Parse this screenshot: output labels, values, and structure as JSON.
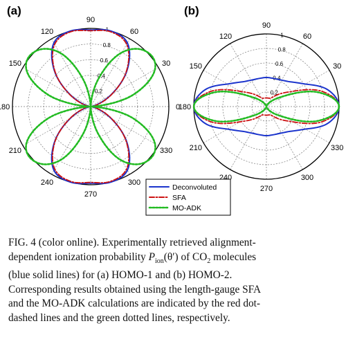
{
  "chart_data": [
    {
      "type": "polar-line",
      "panel_label": "(a)",
      "theta_ticks_deg": [
        "0",
        "30",
        "60",
        "90",
        "120",
        "150",
        "180",
        "210",
        "240",
        "270",
        "300",
        "330"
      ],
      "r_ticks": [
        "0.2",
        "0.4",
        "0.6",
        "0.8",
        "1"
      ],
      "rlim": [
        0,
        1
      ],
      "grid": true,
      "series": [
        {
          "name": "Deconvoluted",
          "color": "#1a33cc",
          "dash": "solid",
          "theta_deg": [
            0,
            15,
            30,
            45,
            60,
            75,
            90,
            105,
            120,
            135,
            150,
            165,
            180,
            195,
            210,
            225,
            240,
            255,
            270,
            285,
            300,
            315,
            330,
            345
          ],
          "values": [
            0.03,
            0.06,
            0.3,
            0.66,
            0.94,
            1.0,
            0.98,
            1.0,
            0.94,
            0.66,
            0.3,
            0.06,
            0.03,
            0.06,
            0.3,
            0.66,
            0.94,
            1.0,
            0.98,
            1.0,
            0.94,
            0.66,
            0.3,
            0.06
          ]
        },
        {
          "name": "SFA",
          "color": "#cc1111",
          "dash": "dash-dot",
          "theta_deg": [
            0,
            15,
            30,
            45,
            60,
            75,
            90,
            105,
            120,
            135,
            150,
            165,
            180,
            195,
            210,
            225,
            240,
            255,
            270,
            285,
            300,
            315,
            330,
            345
          ],
          "values": [
            0.04,
            0.08,
            0.31,
            0.65,
            0.92,
            0.99,
            0.97,
            0.99,
            0.92,
            0.65,
            0.31,
            0.08,
            0.04,
            0.08,
            0.31,
            0.65,
            0.92,
            0.99,
            0.97,
            0.99,
            0.92,
            0.65,
            0.31,
            0.08
          ]
        },
        {
          "name": "MO-ADK",
          "color": "#22bb22",
          "dash": "dotted",
          "theta_deg": [
            0,
            15,
            30,
            45,
            60,
            75,
            90,
            105,
            120,
            135,
            150,
            165,
            180,
            195,
            210,
            225,
            240,
            255,
            270,
            285,
            300,
            315,
            330,
            345
          ],
          "values": [
            0.0,
            0.55,
            0.95,
            1.0,
            0.8,
            0.35,
            0.0,
            0.35,
            0.8,
            1.0,
            0.95,
            0.55,
            0.0,
            0.55,
            0.95,
            1.0,
            0.8,
            0.35,
            0.0,
            0.35,
            0.8,
            1.0,
            0.95,
            0.55
          ]
        }
      ]
    },
    {
      "type": "polar-line",
      "panel_label": "(b)",
      "theta_ticks_deg": [
        "0",
        "30",
        "60",
        "90",
        "120",
        "150",
        "180",
        "210",
        "240",
        "270",
        "300",
        "330"
      ],
      "r_ticks": [
        "0.2",
        "0.4",
        "0.6",
        "0.8",
        "1"
      ],
      "rlim": [
        0,
        1
      ],
      "grid": true,
      "series": [
        {
          "name": "Deconvoluted",
          "color": "#1a33cc",
          "dash": "solid",
          "theta_deg": [
            0,
            15,
            30,
            45,
            60,
            75,
            90,
            105,
            120,
            135,
            150,
            165,
            180,
            195,
            210,
            225,
            240,
            255,
            270,
            285,
            300,
            315,
            330,
            345
          ],
          "values": [
            1.0,
            0.88,
            0.62,
            0.48,
            0.42,
            0.4,
            0.4,
            0.4,
            0.42,
            0.48,
            0.62,
            0.88,
            1.0,
            0.88,
            0.62,
            0.48,
            0.42,
            0.4,
            0.4,
            0.4,
            0.42,
            0.48,
            0.62,
            0.88
          ]
        },
        {
          "name": "SFA",
          "color": "#cc1111",
          "dash": "dash-dot",
          "theta_deg": [
            0,
            15,
            30,
            45,
            60,
            75,
            90,
            105,
            120,
            135,
            150,
            165,
            180,
            195,
            210,
            225,
            240,
            255,
            270,
            285,
            300,
            315,
            330,
            345
          ],
          "values": [
            1.0,
            0.8,
            0.42,
            0.24,
            0.14,
            0.12,
            0.12,
            0.12,
            0.14,
            0.24,
            0.42,
            0.8,
            1.0,
            0.8,
            0.42,
            0.24,
            0.14,
            0.12,
            0.12,
            0.12,
            0.14,
            0.24,
            0.42,
            0.8
          ]
        },
        {
          "name": "MO-ADK",
          "color": "#22bb22",
          "dash": "dotted",
          "theta_deg": [
            0,
            15,
            30,
            45,
            60,
            75,
            90,
            105,
            120,
            135,
            150,
            165,
            180,
            195,
            210,
            225,
            240,
            255,
            270,
            285,
            300,
            315,
            330,
            345
          ],
          "values": [
            1.0,
            0.75,
            0.3,
            0.12,
            0.04,
            0.01,
            0.0,
            0.01,
            0.04,
            0.12,
            0.3,
            0.75,
            1.0,
            0.75,
            0.3,
            0.12,
            0.04,
            0.01,
            0.0,
            0.01,
            0.04,
            0.12,
            0.3,
            0.75
          ]
        }
      ]
    }
  ],
  "legend": {
    "placement": "bottom-center",
    "entries": [
      {
        "label": "Deconvoluted",
        "color": "#1a33cc",
        "dash": "solid"
      },
      {
        "label": "SFA",
        "color": "#cc1111",
        "dash": "dash-dot"
      },
      {
        "label": "MO-ADK",
        "color": "#22bb22",
        "dash": "dotted"
      }
    ]
  },
  "caption": {
    "line1_a": "FIG. 4 (color online).  Experimentally retrieved alignment-",
    "line2_a": "dependent ionization probability ",
    "line2_p": "P",
    "line2_sub": "ion",
    "line2_b": "(θ′) of CO",
    "line2_sub2": "2",
    "line2_c": " molecules",
    "line3": "(blue solid lines) for (a) HOMO-1 and (b) HOMO-2.",
    "line4": "Corresponding results obtained using the length-gauge SFA",
    "line5": "and the MO-ADK calculations are indicated by the red dot-",
    "line6": "dashed lines and the green dotted lines, respectively."
  }
}
